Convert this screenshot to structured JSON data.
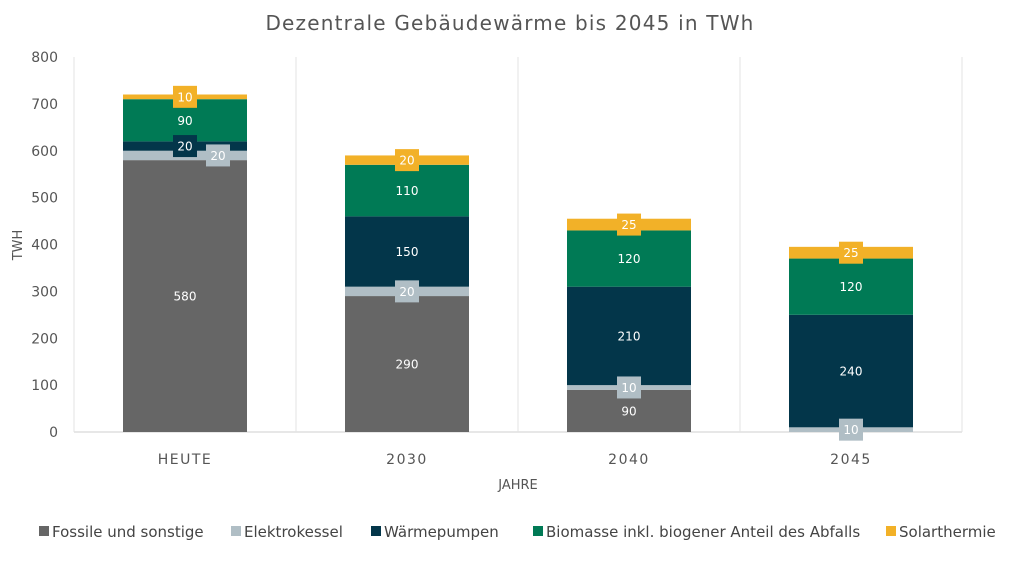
{
  "chart_data": {
    "type": "bar",
    "stacked": true,
    "title": "Dezentrale Gebäudewärme bis 2045 in TWh",
    "xlabel": "JAHRE",
    "ylabel": "TWH",
    "ylim": [
      0,
      800
    ],
    "yticks": [
      "0",
      "100",
      "200",
      "300",
      "400",
      "500",
      "600",
      "700",
      "800"
    ],
    "categories": [
      "HEUTE",
      "2030",
      "2040",
      "2045"
    ],
    "legend_position": "bottom",
    "series": [
      {
        "name": "Fossile und sonstige",
        "color": "#666666",
        "values": [
          580,
          290,
          90,
          0
        ],
        "labels": [
          "580",
          "290",
          "90",
          ""
        ],
        "label_style": "inline"
      },
      {
        "name": "Elektrokessel",
        "color": "#b0bec5",
        "values": [
          20,
          20,
          10,
          10
        ],
        "labels": [
          "20",
          "20",
          "10",
          "10"
        ],
        "label_style": "badge"
      },
      {
        "name": "Wärmepumpen",
        "color": "#03364a",
        "values": [
          20,
          150,
          210,
          240
        ],
        "labels": [
          "20",
          "150",
          "210",
          "240"
        ],
        "label_style": "inline"
      },
      {
        "name": "Biomasse inkl. biogener Anteil des Abfalls",
        "color": "#007a55",
        "values": [
          90,
          110,
          120,
          120
        ],
        "labels": [
          "90",
          "110",
          "120",
          "120"
        ],
        "label_style": "inline"
      },
      {
        "name": "Solarthermie",
        "color": "#f2b128",
        "values": [
          10,
          20,
          25,
          25
        ],
        "labels": [
          "10",
          "20",
          "25",
          "25"
        ],
        "label_style": "badge"
      }
    ]
  }
}
